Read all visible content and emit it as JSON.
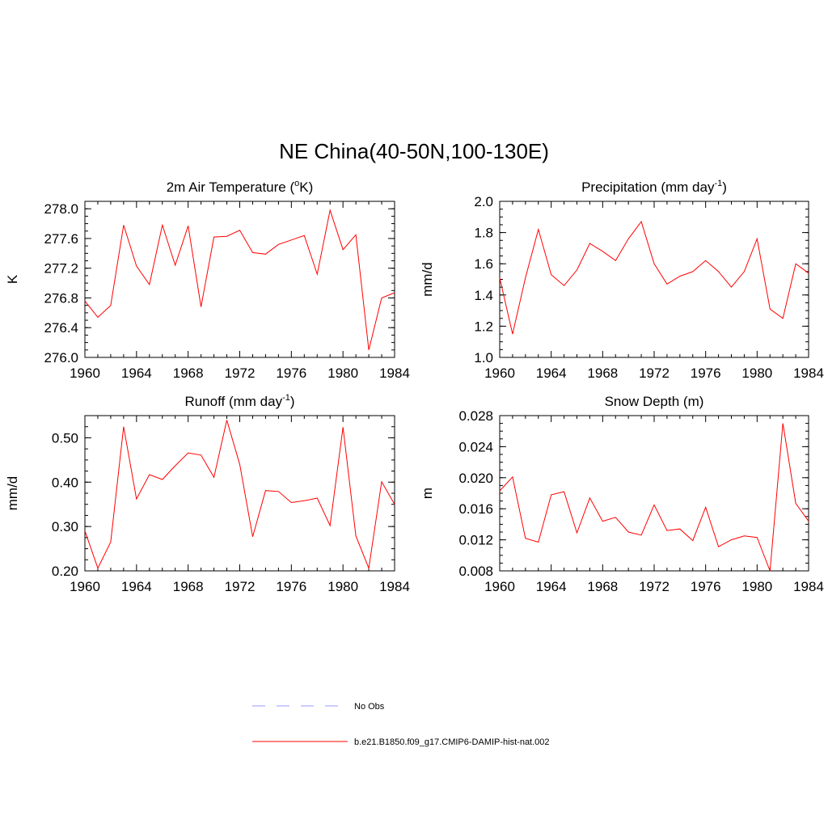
{
  "title": "NE China(40-50N,100-130E)",
  "chart_data": [
    {
      "type": "line",
      "title": "2m Air Temperature (",
      "title_sup": "o",
      "title_after": "K)",
      "ylabel": "K",
      "xlim": [
        1960,
        1984
      ],
      "ylim": [
        276.0,
        278.1
      ],
      "xticks": [
        "1960",
        "1964",
        "1968",
        "1972",
        "1976",
        "1980",
        "1984"
      ],
      "yticks": [
        "276.0",
        "276.4",
        "276.8",
        "277.2",
        "277.6",
        "278.0"
      ],
      "series": [
        {
          "name": "b.e21.B1850.f09_g17.CMIP6-DAMIP-hist-nat.002",
          "color": "#ff0000",
          "x": [
            1960,
            1961,
            1962,
            1963,
            1964,
            1965,
            1966,
            1967,
            1968,
            1969,
            1970,
            1971,
            1972,
            1973,
            1974,
            1975,
            1976,
            1977,
            1978,
            1979,
            1980,
            1981,
            1982,
            1983,
            1984
          ],
          "values": [
            276.76,
            276.54,
            276.7,
            277.78,
            277.23,
            276.98,
            277.78,
            277.24,
            277.77,
            276.68,
            277.62,
            277.63,
            277.71,
            277.41,
            277.39,
            277.52,
            277.58,
            277.64,
            277.12,
            277.98,
            277.45,
            277.65,
            276.1,
            276.8,
            276.87
          ]
        }
      ]
    },
    {
      "type": "line",
      "title": "Precipitation (mm day",
      "title_sup": "-1",
      "title_after": ")",
      "ylabel": "mm/d",
      "xlim": [
        1960,
        1984
      ],
      "ylim": [
        1.0,
        2.0
      ],
      "xticks": [
        "1960",
        "1964",
        "1968",
        "1972",
        "1976",
        "1980",
        "1984"
      ],
      "yticks": [
        "1.0",
        "1.2",
        "1.4",
        "1.6",
        "1.8",
        "2.0"
      ],
      "series": [
        {
          "name": "b.e21.B1850.f09_g17.CMIP6-DAMIP-hist-nat.002",
          "color": "#ff0000",
          "x": [
            1960,
            1961,
            1962,
            1963,
            1964,
            1965,
            1966,
            1967,
            1968,
            1969,
            1970,
            1971,
            1972,
            1973,
            1974,
            1975,
            1976,
            1977,
            1978,
            1979,
            1980,
            1981,
            1982,
            1983,
            1984
          ],
          "values": [
            1.51,
            1.15,
            1.51,
            1.82,
            1.53,
            1.46,
            1.56,
            1.73,
            1.68,
            1.62,
            1.76,
            1.87,
            1.6,
            1.47,
            1.52,
            1.55,
            1.62,
            1.55,
            1.45,
            1.55,
            1.76,
            1.31,
            1.25,
            1.6,
            1.54
          ]
        }
      ]
    },
    {
      "type": "line",
      "title": "Runoff (mm day",
      "title_sup": "-1",
      "title_after": ")",
      "ylabel": "mm/d",
      "xlim": [
        1960,
        1984
      ],
      "ylim": [
        0.2,
        0.55
      ],
      "xticks": [
        "1960",
        "1964",
        "1968",
        "1972",
        "1976",
        "1980",
        "1984"
      ],
      "yticks": [
        "0.20",
        "0.30",
        "0.40",
        "0.50"
      ],
      "series": [
        {
          "name": "b.e21.B1850.f09_g17.CMIP6-DAMIP-hist-nat.002",
          "color": "#ff0000",
          "x": [
            1960,
            1961,
            1962,
            1963,
            1964,
            1965,
            1966,
            1967,
            1968,
            1969,
            1970,
            1971,
            1972,
            1973,
            1974,
            1975,
            1976,
            1977,
            1978,
            1979,
            1980,
            1981,
            1982,
            1983,
            1984
          ],
          "values": [
            0.29,
            0.206,
            0.265,
            0.525,
            0.362,
            0.417,
            0.406,
            0.437,
            0.466,
            0.461,
            0.411,
            0.54,
            0.44,
            0.277,
            0.381,
            0.379,
            0.354,
            0.358,
            0.364,
            0.302,
            0.524,
            0.279,
            0.206,
            0.401,
            0.35
          ]
        }
      ]
    },
    {
      "type": "line",
      "title": "Snow Depth (m)",
      "title_sup": "",
      "title_after": "",
      "ylabel": "m",
      "xlim": [
        1960,
        1984
      ],
      "ylim": [
        0.008,
        0.028
      ],
      "xticks": [
        "1960",
        "1964",
        "1968",
        "1972",
        "1976",
        "1980",
        "1984"
      ],
      "yticks": [
        "0.008",
        "0.012",
        "0.016",
        "0.020",
        "0.024",
        "0.028"
      ],
      "series": [
        {
          "name": "b.e21.B1850.f09_g17.CMIP6-DAMIP-hist-nat.002",
          "color": "#ff0000",
          "x": [
            1960,
            1961,
            1962,
            1963,
            1964,
            1965,
            1966,
            1967,
            1968,
            1969,
            1970,
            1971,
            1972,
            1973,
            1974,
            1975,
            1976,
            1977,
            1978,
            1979,
            1980,
            1981,
            1982,
            1983,
            1984
          ],
          "values": [
            0.0183,
            0.0201,
            0.0122,
            0.0117,
            0.0178,
            0.0182,
            0.0129,
            0.0174,
            0.0144,
            0.0149,
            0.013,
            0.0126,
            0.0165,
            0.0132,
            0.0134,
            0.0119,
            0.0162,
            0.0111,
            0.012,
            0.0125,
            0.0123,
            0.008,
            0.027,
            0.0167,
            0.0144
          ]
        }
      ]
    }
  ],
  "legend": {
    "items": [
      {
        "label": "No Obs",
        "color": "#9999ff",
        "style": "dashed"
      },
      {
        "label": "b.e21.B1850.f09_g17.CMIP6-DAMIP-hist-nat.002",
        "color": "#ff0000",
        "style": "solid"
      }
    ]
  }
}
